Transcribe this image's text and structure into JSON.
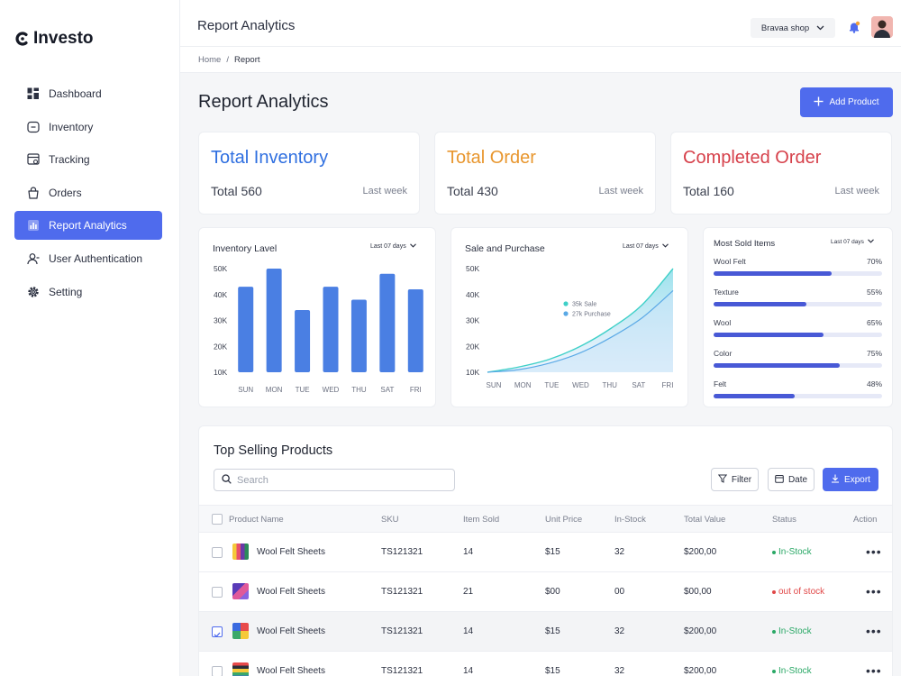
{
  "app": {
    "name": "Investo"
  },
  "sidebar": {
    "items": [
      {
        "label": "Dashboard",
        "icon": "dashboard-icon"
      },
      {
        "label": "Inventory",
        "icon": "inventory-icon"
      },
      {
        "label": "Tracking",
        "icon": "tracking-icon"
      },
      {
        "label": "Orders",
        "icon": "orders-icon"
      },
      {
        "label": "Report Analytics",
        "icon": "chart-icon",
        "active": true
      },
      {
        "label": "User Authentication",
        "icon": "user-icon"
      },
      {
        "label": "Setting",
        "icon": "gear-icon"
      }
    ]
  },
  "topbar": {
    "title": "Report Analytics",
    "shop": "Bravaa shop"
  },
  "breadcrumb": {
    "home": "Home",
    "separator": "/",
    "current": "Report"
  },
  "page": {
    "title": "Report Analytics",
    "add_button": "Add Product"
  },
  "stats": [
    {
      "title": "Total Inventory",
      "total": "Total 560",
      "period": "Last week",
      "color": "#2f6fe0"
    },
    {
      "title": "Total Order",
      "total": "Total 430",
      "period": "Last week",
      "color": "#e8962e"
    },
    {
      "title": "Completed Order",
      "total": "Total 160",
      "period": "Last week",
      "color": "#d6404a"
    }
  ],
  "chart_data": [
    {
      "type": "bar",
      "title": "Inventory Lavel",
      "period": "Last 07 days",
      "categories": [
        "SUN",
        "MON",
        "TUE",
        "WED",
        "THU",
        "SAT",
        "FRI"
      ],
      "values": [
        43,
        50,
        34,
        43,
        38,
        48,
        42
      ],
      "yticks": [
        "50K",
        "40K",
        "30K",
        "20K",
        "10K"
      ],
      "ylim": [
        10,
        50
      ],
      "color": "#4a7fe3"
    },
    {
      "type": "area",
      "title": "Sale and Purchase",
      "period": "Last 07 days",
      "categories": [
        "SUN",
        "MON",
        "TUE",
        "WED",
        "THU",
        "SAT",
        "FRI"
      ],
      "yticks": [
        "50K",
        "40K",
        "30K",
        "20K",
        "10K"
      ],
      "ylim": [
        10,
        50
      ],
      "series": [
        {
          "name": "35k Sale",
          "values": [
            10,
            12,
            15,
            20,
            27,
            36,
            50
          ],
          "color": "#3fd0c8"
        },
        {
          "name": "27k Purchase",
          "values": [
            10,
            11,
            13.5,
            17.5,
            23.5,
            31,
            41.5
          ],
          "color": "#5aa9e6"
        }
      ]
    },
    {
      "type": "bar",
      "title": "Most Sold Items",
      "period": "Last 07 days",
      "categories": [
        "Wool Felt",
        "Texture",
        "Wool",
        "Color",
        "Felt"
      ],
      "labels": [
        "70%",
        "55%",
        "65%",
        "75%",
        "48%"
      ],
      "values": [
        70,
        55,
        65,
        75,
        48
      ]
    }
  ],
  "table": {
    "title": "Top Selling Products",
    "search_placeholder": "Search",
    "buttons": {
      "filter": "Filter",
      "date": "Date",
      "export": "Export"
    },
    "columns": [
      "Product Name",
      "SKU",
      "Item Sold",
      "Unit Price",
      "In-Stock",
      "Total Value",
      "Status",
      "Action"
    ],
    "rows": [
      {
        "name": "Wool Felt Sheets",
        "sku": "TS121321",
        "sold": "14",
        "price": "$15",
        "stock": "32",
        "total": "$200,00",
        "status": "In-Stock",
        "status_color": "#2aa866",
        "checked": false
      },
      {
        "name": "Wool Felt Sheets",
        "sku": "TS121321",
        "sold": "21",
        "price": "$00",
        "stock": "00",
        "total": "$00,00",
        "status": "out of stock",
        "status_color": "#e04848",
        "checked": false
      },
      {
        "name": "Wool Felt Sheets",
        "sku": "TS121321",
        "sold": "14",
        "price": "$15",
        "stock": "32",
        "total": "$200,00",
        "status": "In-Stock",
        "status_color": "#2aa866",
        "checked": true
      },
      {
        "name": "Wool Felt Sheets",
        "sku": "TS121321",
        "sold": "14",
        "price": "$15",
        "stock": "32",
        "total": "$200,00",
        "status": "In-Stock",
        "status_color": "#2aa866",
        "checked": false
      }
    ],
    "more_icon": "•••"
  }
}
